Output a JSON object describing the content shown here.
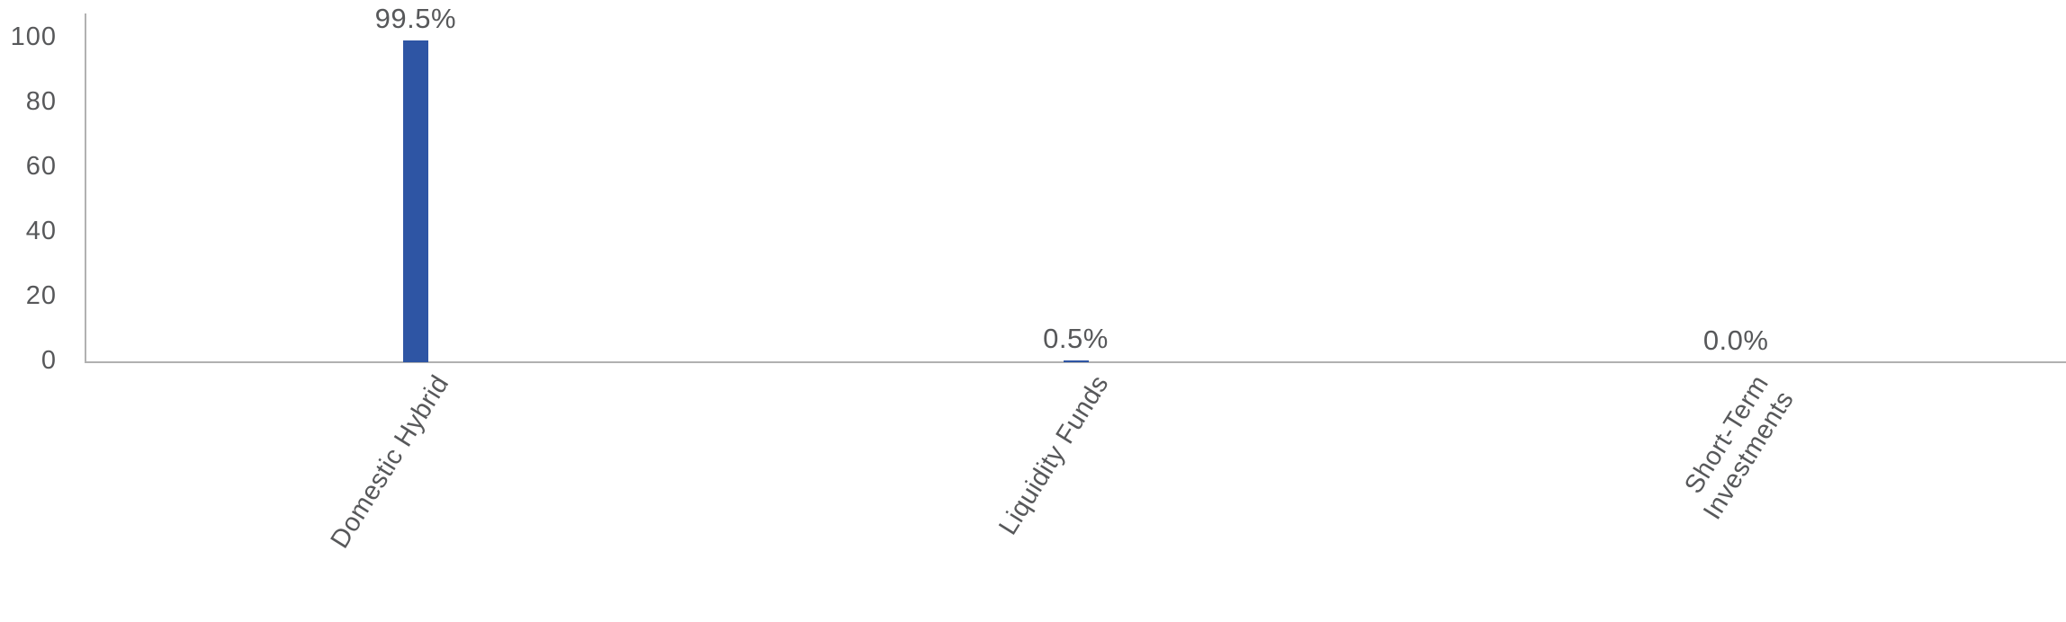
{
  "chart_data": {
    "type": "bar",
    "title": "",
    "xlabel": "",
    "ylabel": "",
    "categories": [
      "Domestic Hybrid",
      "Liquidity Funds",
      "Short-Term Investments"
    ],
    "category_label_lines": [
      [
        "Domestic Hybrid"
      ],
      [
        "Liquidity Funds"
      ],
      [
        "Short-Term",
        "Investments"
      ]
    ],
    "values": [
      99.5,
      0.5,
      0.0
    ],
    "data_labels": [
      "99.5%",
      "0.5%",
      "0.0%"
    ],
    "yticks": [
      0,
      20,
      40,
      60,
      80,
      100
    ],
    "ylim": [
      0,
      107.8
    ],
    "grid": false,
    "legend_position": "none",
    "bar_color": "#2e55a4",
    "axis_color": "#b1b1b1",
    "text_color": "#57585a",
    "category_label_rotation_deg": -58
  }
}
